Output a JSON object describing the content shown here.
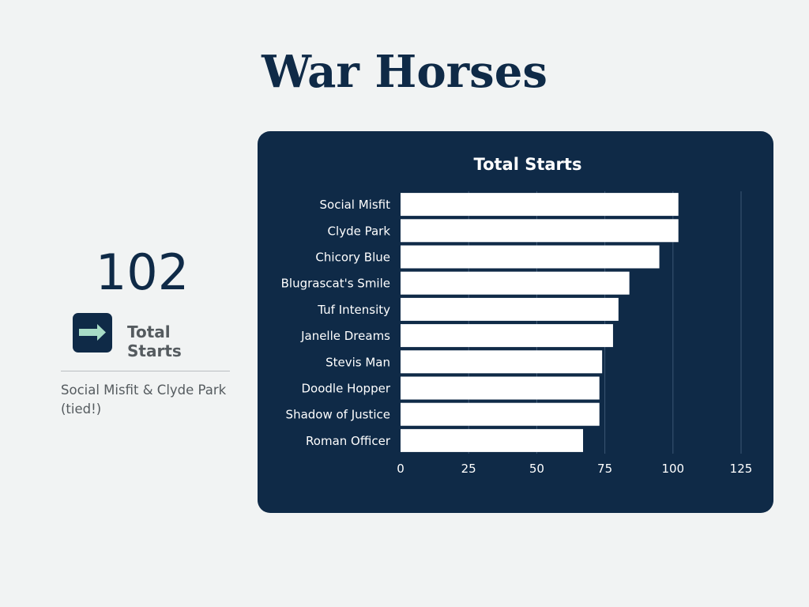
{
  "page": {
    "title": "War Horses"
  },
  "stat": {
    "value": "102",
    "label": "Total Starts",
    "note": "Social Misfit & Clyde Park (tied!)",
    "icon": "arrow-right-icon",
    "icon_color": "#a8dcc6"
  },
  "colors": {
    "background": "#f1f3f3",
    "card": "#0f2a47",
    "bar": "#ffffff",
    "text_dark": "#0f2a47",
    "text_muted": "#555b5f"
  },
  "chart_data": {
    "type": "bar",
    "orientation": "horizontal",
    "title": "Total Starts",
    "categories": [
      "Social Misfit",
      "Clyde Park",
      "Chicory Blue",
      "Blugrascat's Smile",
      "Tuf Intensity",
      "Janelle Dreams",
      "Stevis Man",
      "Doodle Hopper",
      "Shadow of Justice",
      "Roman Officer"
    ],
    "values": [
      102,
      102,
      95,
      84,
      80,
      78,
      74,
      73,
      73,
      67
    ],
    "xlim": [
      0,
      125
    ],
    "xticks": [
      "0",
      "25",
      "50",
      "75",
      "100",
      "125"
    ],
    "grid": true,
    "legend": "none"
  }
}
